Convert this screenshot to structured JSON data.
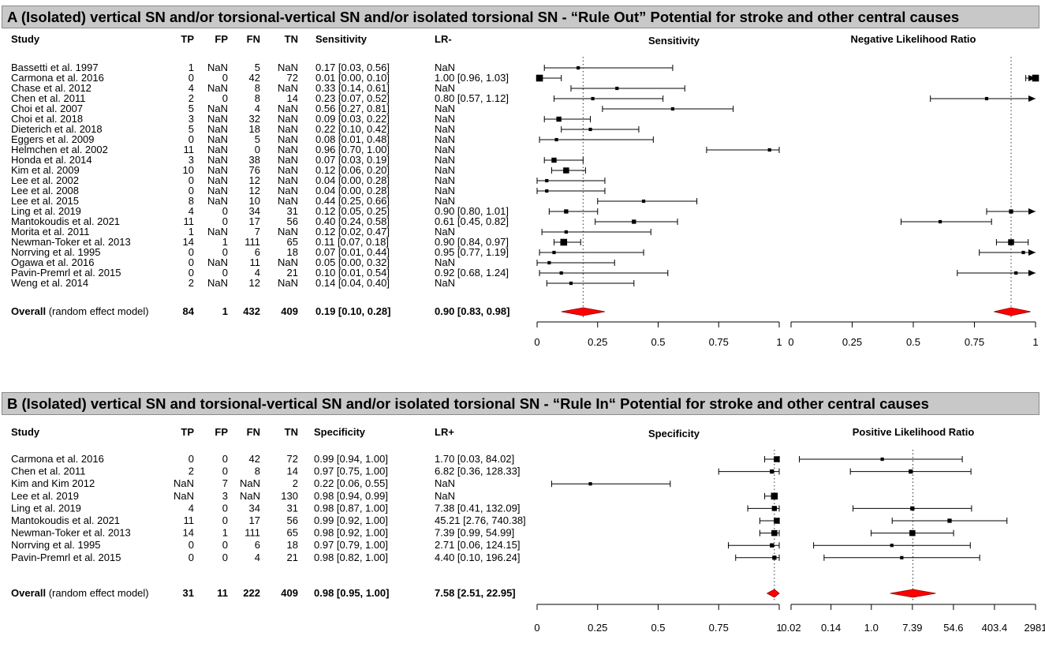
{
  "chart_data": [
    {
      "type": "forest",
      "title": "A (Isolated) vertical SN and/or torsional-vertical SN and/or isolated torsional SN - “Rule Out” Potential for stroke and other central causes",
      "columns": {
        "study": "Study",
        "tp": "TP",
        "fp": "FP",
        "fn": "FN",
        "tn": "TN",
        "est1": "Sensitivity",
        "est2": "LR-"
      },
      "plot1": {
        "title": "Sensitivity",
        "scale": "linear",
        "xlim": [
          0,
          1
        ],
        "ticks": [
          0,
          0.25,
          0.5,
          0.75,
          1
        ],
        "tick_labels": [
          "0",
          "0.25",
          "0.5",
          "0.75",
          "1"
        ],
        "reference": 0.19
      },
      "plot2": {
        "title": "Negative Likelihood Ratio",
        "scale": "linear",
        "xlim": [
          0,
          1
        ],
        "ticks": [
          0,
          0.25,
          0.5,
          0.75,
          1
        ],
        "tick_labels": [
          "0",
          "0.25",
          "0.5",
          "0.75",
          "1"
        ],
        "reference": 0.9
      },
      "studies": [
        {
          "study": "Bassetti et al. 1997",
          "tp": "1",
          "fp": "NaN",
          "fn": "5",
          "tn": "NaN",
          "est1_text": "0.17 [0.03, 0.56]",
          "est2_text": "NaN",
          "est1": [
            0.17,
            0.03,
            0.56,
            1
          ],
          "est2": null
        },
        {
          "study": "Carmona et al. 2016",
          "tp": "0",
          "fp": "0",
          "fn": "42",
          "tn": "72",
          "est1_text": "0.01 [0.00, 0.10]",
          "est2_text": "1.00 [0.96, 1.03]",
          "est1": [
            0.01,
            0.0,
            0.1,
            3
          ],
          "est2": [
            1.0,
            0.96,
            1.03,
            3
          ]
        },
        {
          "study": "Chase et al. 2012",
          "tp": "4",
          "fp": "NaN",
          "fn": "8",
          "tn": "NaN",
          "est1_text": "0.33 [0.14, 0.61]",
          "est2_text": "NaN",
          "est1": [
            0.33,
            0.14,
            0.61,
            1
          ],
          "est2": null
        },
        {
          "study": "Chen et al. 2011",
          "tp": "2",
          "fp": "0",
          "fn": "8",
          "tn": "14",
          "est1_text": "0.23 [0.07, 0.52]",
          "est2_text": "0.80 [0.57, 1.12]",
          "est1": [
            0.23,
            0.07,
            0.52,
            1
          ],
          "est2": [
            0.8,
            0.57,
            1.12,
            1
          ]
        },
        {
          "study": "Choi et al. 2007",
          "tp": "5",
          "fp": "NaN",
          "fn": "4",
          "tn": "NaN",
          "est1_text": "0.56 [0.27, 0.81]",
          "est2_text": "NaN",
          "est1": [
            0.56,
            0.27,
            0.81,
            1
          ],
          "est2": null
        },
        {
          "study": "Choi et al. 2018",
          "tp": "3",
          "fp": "NaN",
          "fn": "32",
          "tn": "NaN",
          "est1_text": "0.09 [0.03, 0.22]",
          "est2_text": "NaN",
          "est1": [
            0.09,
            0.03,
            0.22,
            2
          ],
          "est2": null
        },
        {
          "study": "Dieterich et al. 2018",
          "tp": "5",
          "fp": "NaN",
          "fn": "18",
          "tn": "NaN",
          "est1_text": "0.22 [0.10, 0.42]",
          "est2_text": "NaN",
          "est1": [
            0.22,
            0.1,
            0.42,
            1
          ],
          "est2": null
        },
        {
          "study": "Eggers et al. 2009",
          "tp": "0",
          "fp": "NaN",
          "fn": "5",
          "tn": "NaN",
          "est1_text": "0.08 [0.01, 0.48]",
          "est2_text": "NaN",
          "est1": [
            0.08,
            0.01,
            0.48,
            1
          ],
          "est2": null
        },
        {
          "study": "Helmchen et al. 2002",
          "tp": "11",
          "fp": "NaN",
          "fn": "0",
          "tn": "NaN",
          "est1_text": "0.96 [0.70, 1.00]",
          "est2_text": "NaN",
          "est1": [
            0.96,
            0.7,
            1.0,
            1
          ],
          "est2": null
        },
        {
          "study": "Honda et al. 2014",
          "tp": "3",
          "fp": "NaN",
          "fn": "38",
          "tn": "NaN",
          "est1_text": "0.07 [0.03, 0.19]",
          "est2_text": "NaN",
          "est1": [
            0.07,
            0.03,
            0.19,
            2
          ],
          "est2": null
        },
        {
          "study": "Kim et al. 2009",
          "tp": "10",
          "fp": "NaN",
          "fn": "76",
          "tn": "NaN",
          "est1_text": "0.12 [0.06, 0.20]",
          "est2_text": "NaN",
          "est1": [
            0.12,
            0.06,
            0.2,
            2.5
          ],
          "est2": null
        },
        {
          "study": "Lee et al. 2002",
          "tp": "0",
          "fp": "NaN",
          "fn": "12",
          "tn": "NaN",
          "est1_text": "0.04 [0.00, 0.28]",
          "est2_text": "NaN",
          "est1": [
            0.04,
            0.0,
            0.28,
            1
          ],
          "est2": null
        },
        {
          "study": "Lee et al. 2008",
          "tp": "0",
          "fp": "NaN",
          "fn": "12",
          "tn": "NaN",
          "est1_text": "0.04 [0.00, 0.28]",
          "est2_text": "NaN",
          "est1": [
            0.04,
            0.0,
            0.28,
            1
          ],
          "est2": null
        },
        {
          "study": "Lee et al. 2015",
          "tp": "8",
          "fp": "NaN",
          "fn": "10",
          "tn": "NaN",
          "est1_text": "0.44 [0.25, 0.66]",
          "est2_text": "NaN",
          "est1": [
            0.44,
            0.25,
            0.66,
            1
          ],
          "est2": null
        },
        {
          "study": "Ling et al. 2019",
          "tp": "4",
          "fp": "0",
          "fn": "34",
          "tn": "31",
          "est1_text": "0.12 [0.05, 0.25]",
          "est2_text": "0.90 [0.80, 1.01]",
          "est1": [
            0.12,
            0.05,
            0.25,
            1.5
          ],
          "est2": [
            0.9,
            0.8,
            1.01,
            1.5
          ]
        },
        {
          "study": "Mantokoudis et al. 2021",
          "tp": "11",
          "fp": "0",
          "fn": "17",
          "tn": "56",
          "est1_text": "0.40 [0.24, 0.58]",
          "est2_text": "0.61 [0.45, 0.82]",
          "est1": [
            0.4,
            0.24,
            0.58,
            1.5
          ],
          "est2": [
            0.61,
            0.45,
            0.82,
            1
          ]
        },
        {
          "study": "Morita et al. 2011",
          "tp": "1",
          "fp": "NaN",
          "fn": "7",
          "tn": "NaN",
          "est1_text": "0.12 [0.02, 0.47]",
          "est2_text": "NaN",
          "est1": [
            0.12,
            0.02,
            0.47,
            1
          ],
          "est2": null
        },
        {
          "study": "Newman-Toker et al. 2013",
          "tp": "14",
          "fp": "1",
          "fn": "111",
          "tn": "65",
          "est1_text": "0.11 [0.07, 0.18]",
          "est2_text": "0.90 [0.84, 0.97]",
          "est1": [
            0.11,
            0.07,
            0.18,
            3
          ],
          "est2": [
            0.9,
            0.84,
            0.97,
            2.5
          ]
        },
        {
          "study": "Norrving et al. 1995",
          "tp": "0",
          "fp": "0",
          "fn": "6",
          "tn": "18",
          "est1_text": "0.07 [0.01, 0.44]",
          "est2_text": "0.95 [0.77, 1.19]",
          "est1": [
            0.07,
            0.01,
            0.44,
            1
          ],
          "est2": [
            0.95,
            0.77,
            1.19,
            1
          ]
        },
        {
          "study": "Ogawa et al. 2016",
          "tp": "0",
          "fp": "NaN",
          "fn": "11",
          "tn": "NaN",
          "est1_text": "0.05 [0.00, 0.32]",
          "est2_text": "NaN",
          "est1": [
            0.05,
            0.0,
            0.32,
            1
          ],
          "est2": null
        },
        {
          "study": "Pavin-Premrl et al. 2015",
          "tp": "0",
          "fp": "0",
          "fn": "4",
          "tn": "21",
          "est1_text": "0.10 [0.01, 0.54]",
          "est2_text": "0.92 [0.68, 1.24]",
          "est1": [
            0.1,
            0.01,
            0.54,
            1
          ],
          "est2": [
            0.92,
            0.68,
            1.24,
            1
          ]
        },
        {
          "study": "Weng et al. 2014",
          "tp": "2",
          "fp": "NaN",
          "fn": "12",
          "tn": "NaN",
          "est1_text": "0.14 [0.04, 0.40]",
          "est2_text": "NaN",
          "est1": [
            0.14,
            0.04,
            0.4,
            1
          ],
          "est2": null
        }
      ],
      "overall": {
        "label_bold": "Overall",
        "label_rest": " (random effect model)",
        "tp": "84",
        "fp": "1",
        "fn": "432",
        "tn": "409",
        "est1_text": "0.19 [0.10, 0.28]",
        "est2_text": "0.90 [0.83, 0.98]",
        "est1": [
          0.19,
          0.1,
          0.28
        ],
        "est2": [
          0.9,
          0.83,
          0.98
        ]
      }
    },
    {
      "type": "forest",
      "title": "B (Isolated) vertical SN and torsional-vertical SN and/or isolated torsional SN - “Rule In“ Potential for stroke and other central causes",
      "columns": {
        "study": "Study",
        "tp": "TP",
        "fp": "FP",
        "fn": "FN",
        "tn": "TN",
        "est1": "Specificity",
        "est2": "LR+"
      },
      "plot1": {
        "title": "Specificity",
        "scale": "linear",
        "xlim": [
          0,
          1
        ],
        "ticks": [
          0,
          0.25,
          0.5,
          0.75,
          1
        ],
        "tick_labels": [
          "0",
          "0.25",
          "0.5",
          "0.75",
          "1"
        ],
        "reference": 0.98
      },
      "plot2": {
        "title": "Positive Likelihood Ratio",
        "scale": "log",
        "xlim": [
          0.02,
          2981
        ],
        "ticks": [
          0.02,
          0.14,
          1.0,
          7.39,
          54.6,
          403.4,
          2981
        ],
        "tick_labels": [
          "0.02",
          "0.14",
          "1.0",
          "7.39",
          "54.6",
          "403.4",
          "2981"
        ],
        "reference": 7.58
      },
      "studies": [
        {
          "study": "Carmona et al. 2016",
          "tp": "0",
          "fp": "0",
          "fn": "42",
          "tn": "72",
          "est1_text": "0.99 [0.94, 1.00]",
          "est2_text": "1.70 [0.03, 84.02]",
          "est1": [
            0.99,
            0.94,
            1.0,
            2.5
          ],
          "est2": [
            1.7,
            0.03,
            84.02,
            1
          ]
        },
        {
          "study": "Chen et al. 2011",
          "tp": "2",
          "fp": "0",
          "fn": "8",
          "tn": "14",
          "est1_text": "0.97 [0.75, 1.00]",
          "est2_text": "6.82 [0.36, 128.33]",
          "est1": [
            0.97,
            0.75,
            1.0,
            1.5
          ],
          "est2": [
            6.82,
            0.36,
            128.33,
            1.5
          ]
        },
        {
          "study": "Kim and Kim 2012",
          "tp": "NaN",
          "fp": "7",
          "fn": "NaN",
          "tn": "2",
          "est1_text": "0.22 [0.06, 0.55]",
          "est2_text": "NaN",
          "est1": [
            0.22,
            0.06,
            0.55,
            1
          ],
          "est2": null
        },
        {
          "study": "Lee et al. 2019",
          "tp": "NaN",
          "fp": "3",
          "fn": "NaN",
          "tn": "130",
          "est1_text": "0.98 [0.94, 0.99]",
          "est2_text": "NaN",
          "est1": [
            0.98,
            0.94,
            0.99,
            3
          ],
          "est2": null
        },
        {
          "study": "Ling et al. 2019",
          "tp": "4",
          "fp": "0",
          "fn": "34",
          "tn": "31",
          "est1_text": "0.98 [0.87, 1.00]",
          "est2_text": "7.38 [0.41, 132.09]",
          "est1": [
            0.98,
            0.87,
            1.0,
            2
          ],
          "est2": [
            7.38,
            0.41,
            132.09,
            1.5
          ]
        },
        {
          "study": "Mantokoudis et al. 2021",
          "tp": "11",
          "fp": "0",
          "fn": "17",
          "tn": "56",
          "est1_text": "0.99 [0.92, 1.00]",
          "est2_text": "45.21 [2.76, 740.38]",
          "est1": [
            0.99,
            0.92,
            1.0,
            2.5
          ],
          "est2": [
            45.21,
            2.76,
            740.38,
            1.5
          ]
        },
        {
          "study": "Newman-Toker et al. 2013",
          "tp": "14",
          "fp": "1",
          "fn": "111",
          "tn": "65",
          "est1_text": "0.98 [0.92, 1.00]",
          "est2_text": "7.39 [0.99, 54.99]",
          "est1": [
            0.98,
            0.92,
            1.0,
            2.5
          ],
          "est2": [
            7.39,
            0.99,
            54.99,
            2.5
          ]
        },
        {
          "study": "Norrving et al. 1995",
          "tp": "0",
          "fp": "0",
          "fn": "6",
          "tn": "18",
          "est1_text": "0.97 [0.79, 1.00]",
          "est2_text": "2.71 [0.06, 124.15]",
          "est1": [
            0.97,
            0.79,
            1.0,
            1.5
          ],
          "est2": [
            2.71,
            0.06,
            124.15,
            1
          ]
        },
        {
          "study": "Pavin-Premrl et al. 2015",
          "tp": "0",
          "fp": "0",
          "fn": "4",
          "tn": "21",
          "est1_text": "0.98 [0.82, 1.00]",
          "est2_text": "4.40 [0.10, 196.24]",
          "est1": [
            0.98,
            0.82,
            1.0,
            1.5
          ],
          "est2": [
            4.4,
            0.1,
            196.24,
            1
          ]
        }
      ],
      "overall": {
        "label_bold": "Overall",
        "label_rest": " (random effect model)",
        "tp": "31",
        "fp": "11",
        "fn": "222",
        "tn": "409",
        "est1_text": "0.98 [0.95, 1.00]",
        "est2_text": "7.58 [2.51, 22.95]",
        "est1": [
          0.98,
          0.95,
          1.0
        ],
        "est2": [
          7.58,
          2.51,
          22.95
        ]
      }
    }
  ]
}
